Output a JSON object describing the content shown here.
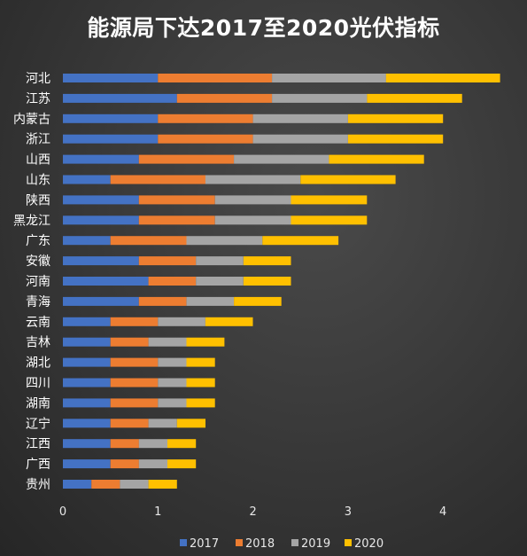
{
  "chart_data": {
    "type": "bar",
    "orientation": "horizontal",
    "stacked": true,
    "title": "能源局下达2017至2020光伏指标",
    "categories": [
      "河北",
      "江苏",
      "内蒙古",
      "浙江",
      "山西",
      "山东",
      "陕西",
      "黑龙江",
      "广东",
      "安徽",
      "河南",
      "青海",
      "云南",
      "吉林",
      "湖北",
      "四川",
      "湖南",
      "辽宁",
      "江西",
      "广西",
      "贵州"
    ],
    "series": [
      {
        "name": "2017",
        "color": "#4472C4",
        "values": [
          1.0,
          1.2,
          1.0,
          1.0,
          0.8,
          0.5,
          0.8,
          0.8,
          0.5,
          0.8,
          0.9,
          0.8,
          0.5,
          0.5,
          0.5,
          0.5,
          0.5,
          0.5,
          0.5,
          0.5,
          0.3
        ]
      },
      {
        "name": "2018",
        "color": "#ED7D31",
        "values": [
          1.2,
          1.0,
          1.0,
          1.0,
          1.0,
          1.0,
          0.8,
          0.8,
          0.8,
          0.6,
          0.5,
          0.5,
          0.5,
          0.4,
          0.5,
          0.5,
          0.5,
          0.4,
          0.3,
          0.3,
          0.3
        ]
      },
      {
        "name": "2019",
        "color": "#A5A5A5",
        "values": [
          1.2,
          1.0,
          1.0,
          1.0,
          1.0,
          1.0,
          0.8,
          0.8,
          0.8,
          0.5,
          0.5,
          0.5,
          0.5,
          0.4,
          0.3,
          0.3,
          0.3,
          0.3,
          0.3,
          0.3,
          0.3
        ]
      },
      {
        "name": "2020",
        "color": "#FFC000",
        "values": [
          1.2,
          1.0,
          1.0,
          1.0,
          1.0,
          1.0,
          0.8,
          0.8,
          0.8,
          0.5,
          0.5,
          0.5,
          0.5,
          0.4,
          0.3,
          0.3,
          0.3,
          0.3,
          0.3,
          0.3,
          0.3
        ]
      }
    ],
    "xlim": [
      0,
      4.5
    ],
    "xticks": [
      0,
      1,
      2,
      3,
      4
    ],
    "grid": false,
    "legend": "bottom"
  }
}
